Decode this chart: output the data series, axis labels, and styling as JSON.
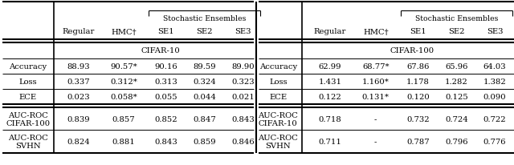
{
  "stochastic_label": "Stochastic Ensembles",
  "cifar10_label": "CIFAR-10",
  "cifar100_label": "CIFAR-100",
  "headers": [
    "Regular",
    "HMC†",
    "SE1",
    "SE2",
    "SE3"
  ],
  "rows_left": [
    [
      "Accuracy",
      "88.93",
      "90.57*",
      "90.16",
      "89.59",
      "89.90"
    ],
    [
      "Loss",
      "0.337",
      "0.312*",
      "0.313",
      "0.324",
      "0.323"
    ],
    [
      "ECE",
      "0.023",
      "0.058*",
      "0.055",
      "0.044",
      "0.021"
    ],
    [
      "AUC-ROC\nCIFAR-100",
      "0.839",
      "0.857",
      "0.852",
      "0.847",
      "0.843"
    ],
    [
      "AUC-ROC\nSVHN",
      "0.824",
      "0.881",
      "0.843",
      "0.859",
      "0.846"
    ]
  ],
  "rows_right": [
    [
      "Accuracy",
      "62.99",
      "68.77*",
      "67.86",
      "65.96",
      "64.03"
    ],
    [
      "Loss",
      "1.431",
      "1.160*",
      "1.178",
      "1.282",
      "1.382"
    ],
    [
      "ECE",
      "0.122",
      "0.131*",
      "0.120",
      "0.125",
      "0.090"
    ],
    [
      "AUC-ROC\nCIFAR-10",
      "0.718",
      "-",
      "0.732",
      "0.724",
      "0.722"
    ],
    [
      "AUC-ROC\nSVHN",
      "0.711",
      "-",
      "0.787",
      "0.796",
      "0.776"
    ]
  ],
  "bg_color": "#ffffff",
  "text_color": "#000000",
  "font_size": 7.2,
  "lw_thick": 1.5,
  "lw_thin": 0.7,
  "lw_vline": 1.2
}
